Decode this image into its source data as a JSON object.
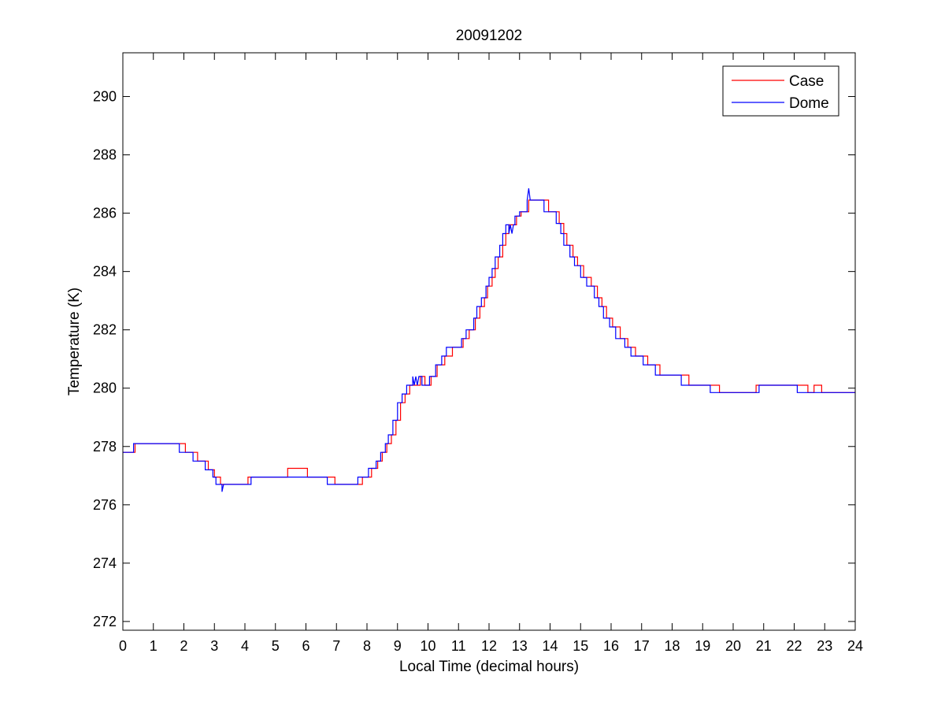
{
  "chart_data": {
    "type": "line",
    "title": "20091202",
    "xlabel": "Local Time (decimal hours)",
    "ylabel": "Temperature (K)",
    "xlim": [
      0,
      24
    ],
    "ylim": [
      271.7,
      291.5
    ],
    "xticks": [
      0,
      1,
      2,
      3,
      4,
      5,
      6,
      7,
      8,
      9,
      10,
      11,
      12,
      13,
      14,
      15,
      16,
      17,
      18,
      19,
      20,
      21,
      22,
      23,
      24
    ],
    "yticks": [
      272,
      274,
      276,
      278,
      280,
      282,
      284,
      286,
      288,
      290
    ],
    "grid": false,
    "legend_position": "top-right",
    "series": [
      {
        "name": "Case",
        "color": "#ff0000",
        "points": [
          [
            0,
            277.8
          ],
          [
            0.4,
            277.8
          ],
          [
            0.4,
            278.1
          ],
          [
            2.05,
            278.1
          ],
          [
            2.05,
            277.8
          ],
          [
            2.45,
            277.8
          ],
          [
            2.45,
            277.5
          ],
          [
            2.8,
            277.5
          ],
          [
            2.8,
            277.2
          ],
          [
            3.0,
            277.2
          ],
          [
            3.0,
            276.95
          ],
          [
            3.2,
            276.95
          ],
          [
            3.2,
            276.7
          ],
          [
            4.1,
            276.7
          ],
          [
            4.1,
            276.95
          ],
          [
            5.4,
            276.95
          ],
          [
            5.4,
            277.25
          ],
          [
            6.05,
            277.25
          ],
          [
            6.05,
            276.95
          ],
          [
            6.95,
            276.95
          ],
          [
            6.95,
            276.7
          ],
          [
            7.85,
            276.7
          ],
          [
            7.85,
            276.95
          ],
          [
            8.15,
            276.95
          ],
          [
            8.15,
            277.25
          ],
          [
            8.35,
            277.25
          ],
          [
            8.35,
            277.5
          ],
          [
            8.5,
            277.5
          ],
          [
            8.5,
            277.8
          ],
          [
            8.65,
            277.8
          ],
          [
            8.65,
            278.1
          ],
          [
            8.8,
            278.1
          ],
          [
            8.8,
            278.4
          ],
          [
            8.95,
            278.4
          ],
          [
            8.95,
            278.9
          ],
          [
            9.1,
            278.9
          ],
          [
            9.1,
            279.5
          ],
          [
            9.25,
            279.5
          ],
          [
            9.25,
            279.8
          ],
          [
            9.4,
            279.8
          ],
          [
            9.4,
            280.1
          ],
          [
            9.75,
            280.1
          ],
          [
            9.75,
            280.4
          ],
          [
            9.9,
            280.4
          ],
          [
            9.9,
            280.1
          ],
          [
            10.1,
            280.1
          ],
          [
            10.1,
            280.4
          ],
          [
            10.3,
            280.4
          ],
          [
            10.3,
            280.8
          ],
          [
            10.55,
            280.8
          ],
          [
            10.55,
            281.1
          ],
          [
            10.8,
            281.1
          ],
          [
            10.8,
            281.4
          ],
          [
            11.15,
            281.4
          ],
          [
            11.15,
            281.7
          ],
          [
            11.35,
            281.7
          ],
          [
            11.35,
            282.0
          ],
          [
            11.55,
            282.0
          ],
          [
            11.55,
            282.4
          ],
          [
            11.7,
            282.4
          ],
          [
            11.7,
            282.8
          ],
          [
            11.85,
            282.8
          ],
          [
            11.85,
            283.1
          ],
          [
            11.95,
            283.1
          ],
          [
            11.95,
            283.5
          ],
          [
            12.1,
            283.5
          ],
          [
            12.1,
            283.8
          ],
          [
            12.2,
            283.8
          ],
          [
            12.2,
            284.1
          ],
          [
            12.3,
            284.1
          ],
          [
            12.3,
            284.5
          ],
          [
            12.45,
            284.5
          ],
          [
            12.45,
            284.9
          ],
          [
            12.55,
            284.9
          ],
          [
            12.55,
            285.3
          ],
          [
            12.65,
            285.3
          ],
          [
            12.65,
            285.6
          ],
          [
            12.9,
            285.6
          ],
          [
            12.9,
            285.9
          ],
          [
            13.05,
            285.9
          ],
          [
            13.05,
            286.05
          ],
          [
            13.3,
            286.05
          ],
          [
            13.3,
            286.45
          ],
          [
            13.95,
            286.45
          ],
          [
            13.95,
            286.05
          ],
          [
            14.3,
            286.05
          ],
          [
            14.3,
            285.65
          ],
          [
            14.45,
            285.65
          ],
          [
            14.45,
            285.3
          ],
          [
            14.55,
            285.3
          ],
          [
            14.55,
            284.9
          ],
          [
            14.75,
            284.9
          ],
          [
            14.75,
            284.5
          ],
          [
            14.9,
            284.5
          ],
          [
            14.9,
            284.2
          ],
          [
            15.1,
            284.2
          ],
          [
            15.1,
            283.8
          ],
          [
            15.35,
            283.8
          ],
          [
            15.35,
            283.5
          ],
          [
            15.55,
            283.5
          ],
          [
            15.55,
            283.1
          ],
          [
            15.7,
            283.1
          ],
          [
            15.7,
            282.8
          ],
          [
            15.85,
            282.8
          ],
          [
            15.85,
            282.4
          ],
          [
            16.05,
            282.4
          ],
          [
            16.05,
            282.1
          ],
          [
            16.3,
            282.1
          ],
          [
            16.3,
            281.7
          ],
          [
            16.55,
            281.7
          ],
          [
            16.55,
            281.4
          ],
          [
            16.8,
            281.4
          ],
          [
            16.8,
            281.1
          ],
          [
            17.2,
            281.1
          ],
          [
            17.2,
            280.8
          ],
          [
            17.6,
            280.8
          ],
          [
            17.6,
            280.45
          ],
          [
            18.55,
            280.45
          ],
          [
            18.55,
            280.1
          ],
          [
            19.55,
            280.1
          ],
          [
            19.55,
            279.85
          ],
          [
            20.75,
            279.85
          ],
          [
            20.75,
            280.1
          ],
          [
            22.45,
            280.1
          ],
          [
            22.45,
            279.85
          ],
          [
            22.65,
            279.85
          ],
          [
            22.65,
            280.1
          ],
          [
            22.9,
            280.1
          ],
          [
            22.9,
            279.85
          ],
          [
            24,
            279.85
          ]
        ]
      },
      {
        "name": "Dome",
        "color": "#0000ff",
        "points": [
          [
            0,
            277.8
          ],
          [
            0.35,
            277.8
          ],
          [
            0.35,
            278.1
          ],
          [
            1.85,
            278.1
          ],
          [
            1.85,
            277.8
          ],
          [
            2.3,
            277.8
          ],
          [
            2.3,
            277.5
          ],
          [
            2.7,
            277.5
          ],
          [
            2.7,
            277.2
          ],
          [
            2.95,
            277.2
          ],
          [
            2.95,
            276.95
          ],
          [
            3.05,
            276.95
          ],
          [
            3.05,
            276.7
          ],
          [
            3.25,
            276.7
          ],
          [
            3.25,
            276.45
          ],
          [
            3.3,
            276.7
          ],
          [
            4.2,
            276.7
          ],
          [
            4.2,
            276.95
          ],
          [
            6.7,
            276.95
          ],
          [
            6.7,
            276.7
          ],
          [
            7.7,
            276.7
          ],
          [
            7.7,
            276.95
          ],
          [
            8.05,
            276.95
          ],
          [
            8.05,
            277.25
          ],
          [
            8.3,
            277.25
          ],
          [
            8.3,
            277.5
          ],
          [
            8.45,
            277.5
          ],
          [
            8.45,
            277.8
          ],
          [
            8.6,
            277.8
          ],
          [
            8.6,
            278.1
          ],
          [
            8.7,
            278.1
          ],
          [
            8.7,
            278.4
          ],
          [
            8.85,
            278.4
          ],
          [
            8.85,
            278.9
          ],
          [
            9.0,
            278.9
          ],
          [
            9.0,
            279.5
          ],
          [
            9.15,
            279.5
          ],
          [
            9.15,
            279.8
          ],
          [
            9.3,
            279.8
          ],
          [
            9.3,
            280.1
          ],
          [
            9.5,
            280.1
          ],
          [
            9.5,
            280.4
          ],
          [
            9.55,
            280.1
          ],
          [
            9.6,
            280.4
          ],
          [
            9.65,
            280.1
          ],
          [
            9.7,
            280.4
          ],
          [
            9.8,
            280.4
          ],
          [
            9.8,
            280.1
          ],
          [
            10.05,
            280.1
          ],
          [
            10.05,
            280.4
          ],
          [
            10.25,
            280.4
          ],
          [
            10.25,
            280.8
          ],
          [
            10.45,
            280.8
          ],
          [
            10.45,
            281.1
          ],
          [
            10.6,
            281.1
          ],
          [
            10.6,
            281.4
          ],
          [
            11.1,
            281.4
          ],
          [
            11.1,
            281.7
          ],
          [
            11.25,
            281.7
          ],
          [
            11.25,
            282.0
          ],
          [
            11.5,
            282.0
          ],
          [
            11.5,
            282.4
          ],
          [
            11.6,
            282.4
          ],
          [
            11.6,
            282.8
          ],
          [
            11.75,
            282.8
          ],
          [
            11.75,
            283.1
          ],
          [
            11.9,
            283.1
          ],
          [
            11.9,
            283.5
          ],
          [
            12.0,
            283.5
          ],
          [
            12.0,
            283.8
          ],
          [
            12.1,
            283.8
          ],
          [
            12.1,
            284.1
          ],
          [
            12.2,
            284.1
          ],
          [
            12.2,
            284.5
          ],
          [
            12.35,
            284.5
          ],
          [
            12.35,
            284.9
          ],
          [
            12.45,
            284.9
          ],
          [
            12.45,
            285.3
          ],
          [
            12.55,
            285.3
          ],
          [
            12.55,
            285.6
          ],
          [
            12.65,
            285.6
          ],
          [
            12.65,
            285.3
          ],
          [
            12.7,
            285.6
          ],
          [
            12.75,
            285.3
          ],
          [
            12.8,
            285.6
          ],
          [
            12.85,
            285.6
          ],
          [
            12.85,
            285.9
          ],
          [
            13.0,
            285.9
          ],
          [
            13.0,
            286.05
          ],
          [
            13.25,
            286.05
          ],
          [
            13.25,
            286.45
          ],
          [
            13.3,
            286.85
          ],
          [
            13.35,
            286.45
          ],
          [
            13.8,
            286.45
          ],
          [
            13.8,
            286.05
          ],
          [
            14.2,
            286.05
          ],
          [
            14.2,
            285.65
          ],
          [
            14.35,
            285.65
          ],
          [
            14.35,
            285.3
          ],
          [
            14.45,
            285.3
          ],
          [
            14.45,
            284.9
          ],
          [
            14.65,
            284.9
          ],
          [
            14.65,
            284.5
          ],
          [
            14.8,
            284.5
          ],
          [
            14.8,
            284.2
          ],
          [
            15.0,
            284.2
          ],
          [
            15.0,
            283.8
          ],
          [
            15.2,
            283.8
          ],
          [
            15.2,
            283.5
          ],
          [
            15.45,
            283.5
          ],
          [
            15.45,
            283.1
          ],
          [
            15.6,
            283.1
          ],
          [
            15.6,
            282.8
          ],
          [
            15.75,
            282.8
          ],
          [
            15.75,
            282.4
          ],
          [
            15.95,
            282.4
          ],
          [
            15.95,
            282.1
          ],
          [
            16.15,
            282.1
          ],
          [
            16.15,
            281.7
          ],
          [
            16.45,
            281.7
          ],
          [
            16.45,
            281.4
          ],
          [
            16.65,
            281.4
          ],
          [
            16.65,
            281.1
          ],
          [
            17.05,
            281.1
          ],
          [
            17.05,
            280.8
          ],
          [
            17.45,
            280.8
          ],
          [
            17.45,
            280.45
          ],
          [
            18.3,
            280.45
          ],
          [
            18.3,
            280.1
          ],
          [
            19.25,
            280.1
          ],
          [
            19.25,
            279.85
          ],
          [
            20.85,
            279.85
          ],
          [
            20.85,
            280.1
          ],
          [
            22.1,
            280.1
          ],
          [
            22.1,
            279.85
          ],
          [
            24,
            279.85
          ]
        ]
      }
    ]
  }
}
